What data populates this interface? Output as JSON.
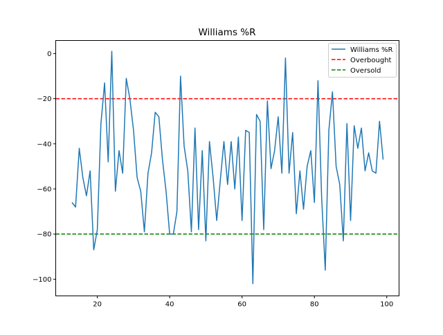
{
  "chart_data": {
    "type": "line",
    "title": "Williams %R",
    "xlabel": "",
    "ylabel": "",
    "xlim": [
      8.5,
      103.4
    ],
    "ylim": [
      -107.4,
      5.8
    ],
    "xticks": [
      20,
      40,
      60,
      80,
      100
    ],
    "yticks": [
      0,
      -20,
      -40,
      -60,
      -80,
      -100
    ],
    "grid": false,
    "legend_position": "top-right",
    "x_start": 13,
    "series": [
      {
        "name": "Williams %R",
        "color": "#1f77b4",
        "style": "solid",
        "values": [
          -66,
          -68,
          -42,
          -55,
          -63,
          -52,
          -87,
          -78,
          -31,
          -13,
          -48,
          1,
          -61,
          -43,
          -53,
          -11,
          -20,
          -34,
          -55,
          -61,
          -79,
          -53,
          -44,
          -26,
          -28,
          -47,
          -61,
          -80,
          -80,
          -70,
          -10,
          -41,
          -52,
          -79,
          -33,
          -78,
          -43,
          -83,
          -39,
          -55,
          -74,
          -56,
          -39,
          -58,
          -39,
          -60,
          -37,
          -74,
          -34,
          -35,
          -102,
          -27,
          -30,
          -78,
          -21,
          -51,
          -43,
          -28,
          -53,
          -2,
          -53,
          -35,
          -71,
          -52,
          -69,
          -50,
          -43,
          -66,
          -12,
          -64,
          -96,
          -34,
          -17,
          -50,
          -58,
          -83,
          -31,
          -74,
          -32,
          -42,
          -33,
          -52,
          -44,
          -52,
          -53,
          -30,
          -47
        ]
      },
      {
        "name": "Overbought",
        "color": "#ff0000",
        "style": "dashed",
        "level": -20
      },
      {
        "name": "Oversold",
        "color": "#008000",
        "style": "dashed",
        "level": -80
      }
    ]
  }
}
